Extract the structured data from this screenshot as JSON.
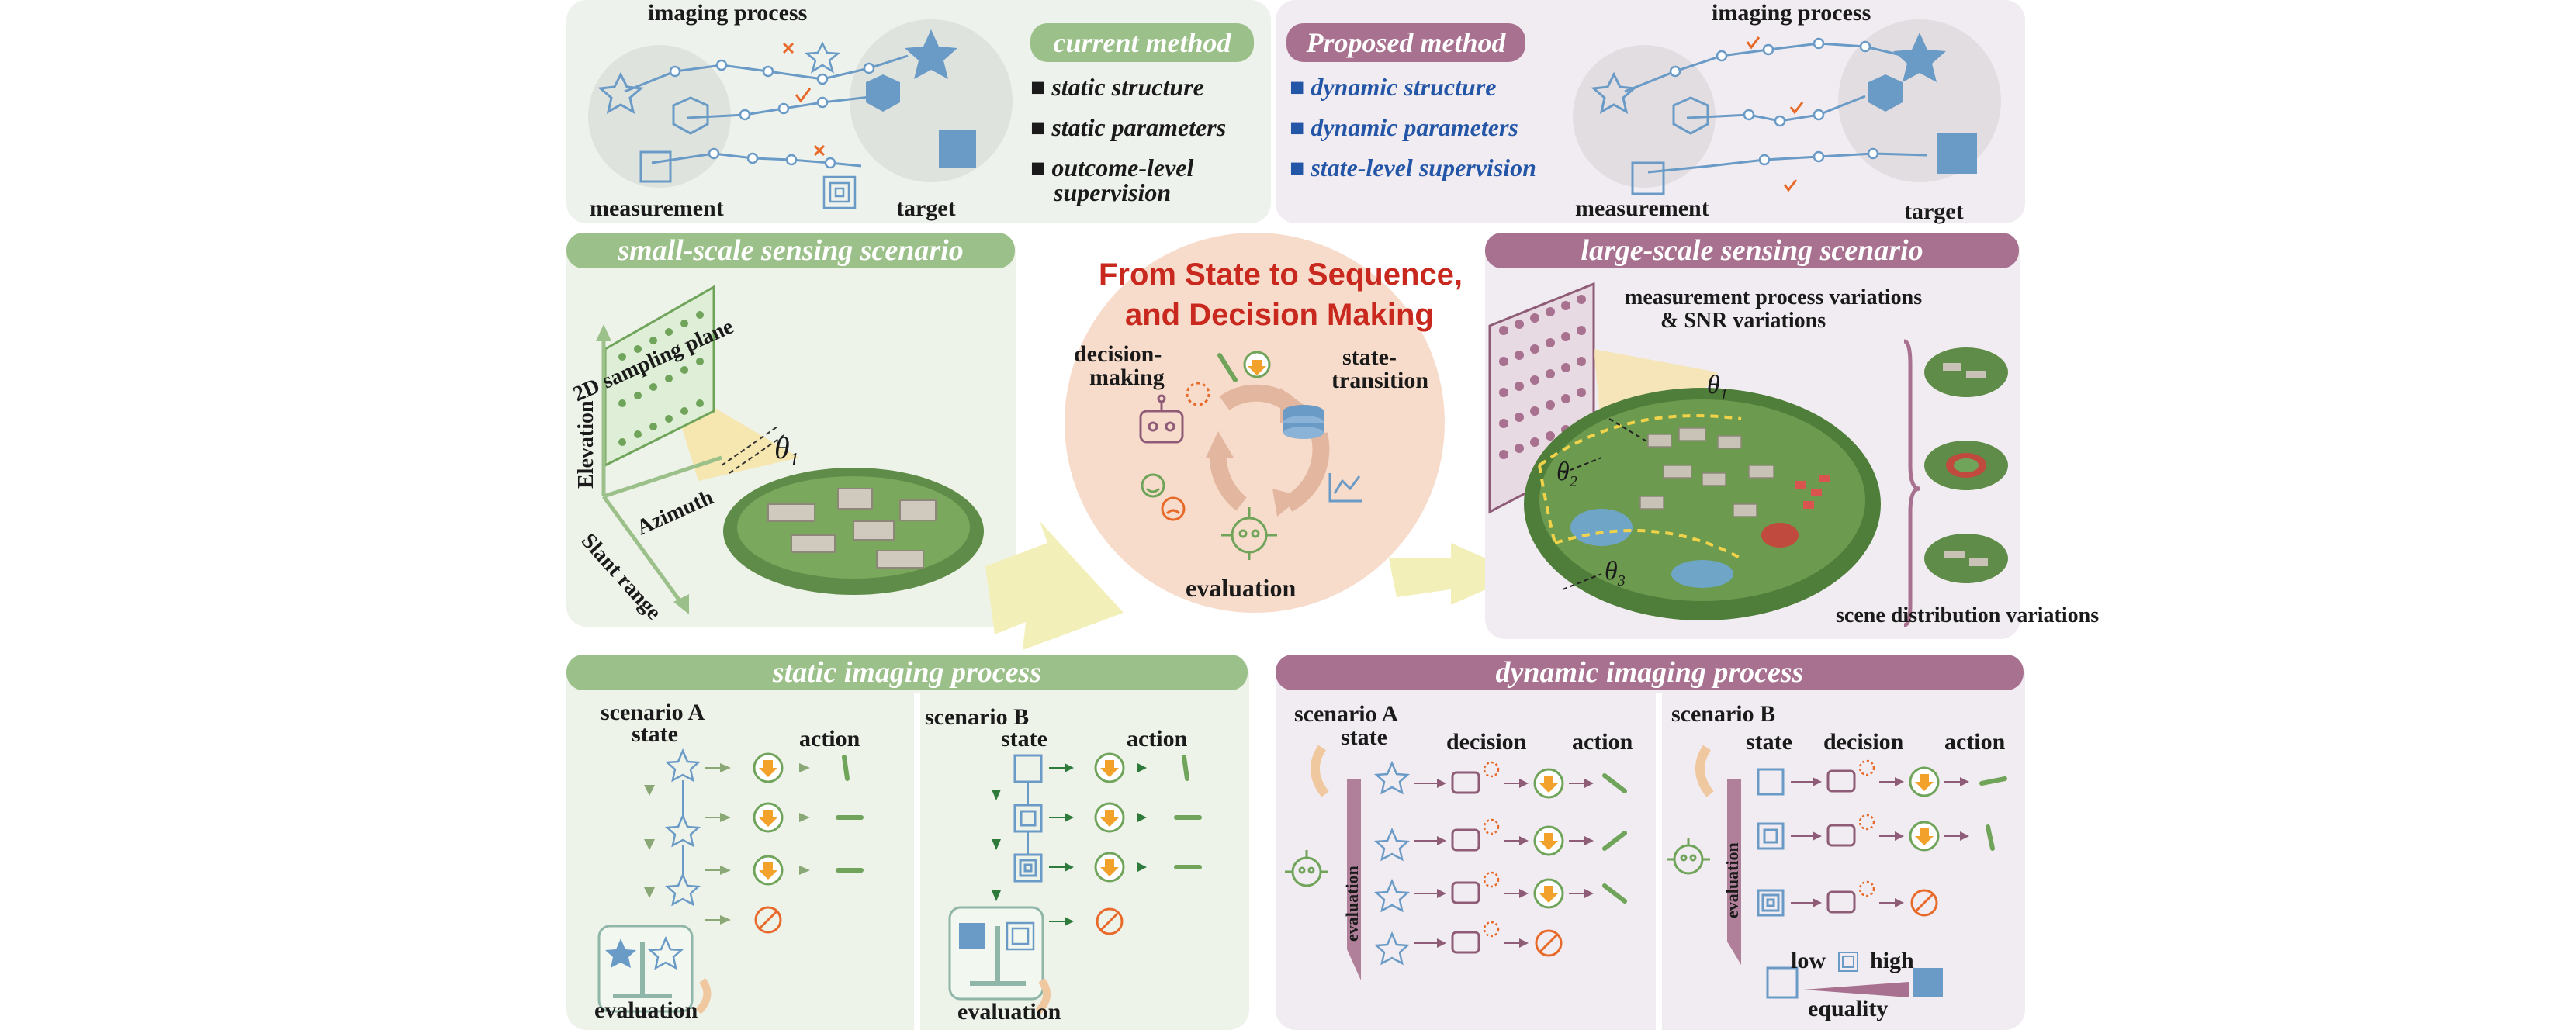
{
  "top_left": {
    "imaging_process": "imaging process",
    "measurement": "measurement",
    "target": "target",
    "badge": "current method",
    "items": [
      "static structure",
      "static parameters",
      "outcome-level",
      "supervision"
    ]
  },
  "top_right": {
    "badge": "Proposed method",
    "items": [
      "dynamic structure",
      "dynamic parameters",
      "state-level supervision"
    ],
    "imaging_process": "imaging process",
    "measurement": "measurement",
    "target": "target"
  },
  "small_scale": {
    "band": "small-scale sensing scenario",
    "plane": "2D sampling plane",
    "elevation": "Elevation",
    "azimuth": "Azimuth",
    "slant": "Slant range",
    "theta": "θ",
    "theta_sub": "1"
  },
  "center": {
    "title_line1": "From  State to Sequence,",
    "title_line2": "and  Decision Making",
    "decision_line1": "decision-",
    "decision_line2": "making",
    "state_line1": "state-",
    "state_line2": "transition",
    "evaluation": "evaluation"
  },
  "large_scale": {
    "band": "large-scale sensing scenario",
    "variation_line1": "measurement process variations",
    "variation_line2": "& SNR variations",
    "theta": "θ",
    "theta_sub1": "1",
    "theta_sub2": "2",
    "theta_sub3": "3",
    "scene_variations": "scene distribution variations"
  },
  "static_process": {
    "band": "static imaging process",
    "scenario_a": "scenario A",
    "scenario_b": "scenario B",
    "state": "state",
    "action": "action",
    "evaluation": "evaluation"
  },
  "dynamic_process": {
    "band": "dynamic imaging process",
    "scenario_a": "scenario A",
    "scenario_b": "scenario B",
    "state": "state",
    "decision": "decision",
    "action": "action",
    "evaluation": "evaluation",
    "low": "low",
    "high": "high",
    "equality": "equality"
  },
  "colors": {
    "green_band": "#9cc08a",
    "purple_band": "#a8718f",
    "green_bg": "#eef3ea",
    "purple_bg": "#f1ecf1",
    "blue": "#6a9ac6",
    "orange": "#e86a2a",
    "green_icon": "#6fa45a",
    "purple_icon": "#8f5c78",
    "title_red": "#c8281e"
  }
}
